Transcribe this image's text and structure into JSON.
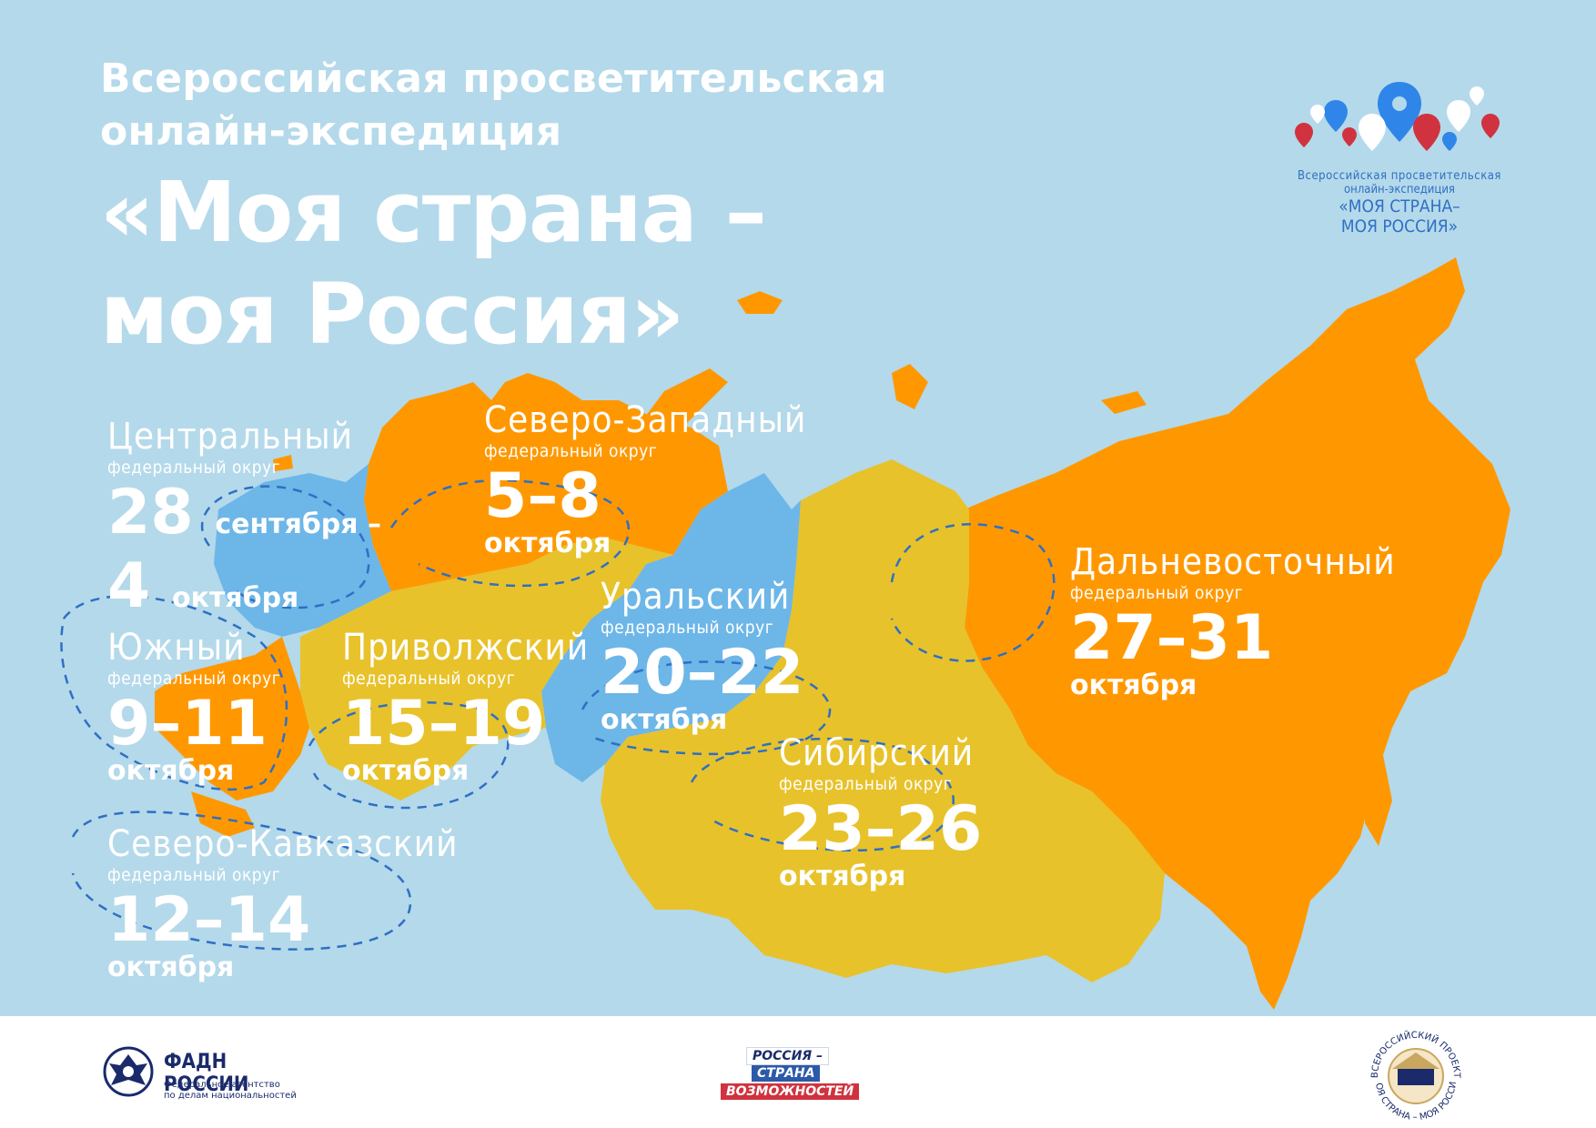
{
  "heading": {
    "subtitle_line1": "Всероссийская просветительская",
    "subtitle_line2": "онлайн-экспедиция",
    "title_line1": "«Моя страна –",
    "title_line2": "моя Россия»"
  },
  "colors": {
    "background": "#b4d9ea",
    "orange": "#ff9800",
    "blue": "#6db6e8",
    "yellow": "#e8c22b",
    "text": "#ffffff",
    "route": "#2f6fc4"
  },
  "districts": [
    {
      "key": "central",
      "name": "Центральный",
      "sub": "федеральный округ",
      "date_main": "28",
      "date_inline": "сентября –",
      "date_main2": "4",
      "date_inline2": "октября",
      "region_color": "blue"
    },
    {
      "key": "northwest",
      "name": "Северо-Западный",
      "sub": "федеральный округ",
      "date": "5–8",
      "month": "октября",
      "region_color": "orange"
    },
    {
      "key": "south",
      "name": "Южный",
      "sub": "федеральный округ",
      "date": "9–11",
      "month": "октября",
      "region_color": "orange"
    },
    {
      "key": "volga",
      "name": "Приволжский",
      "sub": "федеральный округ",
      "date": "15–19",
      "month": "октября",
      "region_color": "yellow"
    },
    {
      "key": "ural",
      "name": "Уральский",
      "sub": "федеральный округ",
      "date": "20–22",
      "month": "октября",
      "region_color": "blue"
    },
    {
      "key": "siberia",
      "name": "Сибирский",
      "sub": "федеральный округ",
      "date": "23–26",
      "month": "октября",
      "region_color": "yellow"
    },
    {
      "key": "fareast",
      "name": "Дальневосточный",
      "sub": "федеральный округ",
      "date": "27–31",
      "month": "октября",
      "region_color": "orange"
    },
    {
      "key": "ncaucasus",
      "name": "Северо-Кавказский",
      "sub": "федеральный округ",
      "date": "12–14",
      "month": "октября",
      "region_color": "orange"
    }
  ],
  "logo": {
    "line1": "Всероссийская просветительская",
    "line2": "онлайн-экспедиция",
    "line3": "«МОЯ СТРАНА–",
    "line4": "МОЯ РОССИЯ»"
  },
  "footer": {
    "fadn_name": "ФАДН РОССИИ",
    "fadn_desc_1": "Федеральное агентство",
    "fadn_desc_2": "по делам национальностей",
    "rsv_1": "РОССИЯ –",
    "rsv_2": "СТРАНА",
    "rsv_3": "ВОЗМОЖНОСТЕЙ",
    "seal_top": "ВСЕРОССИЙСКИЙ ПРОЕКТ",
    "seal_bottom": "МОЯ СТРАНА – МОЯ РОССИЯ"
  }
}
